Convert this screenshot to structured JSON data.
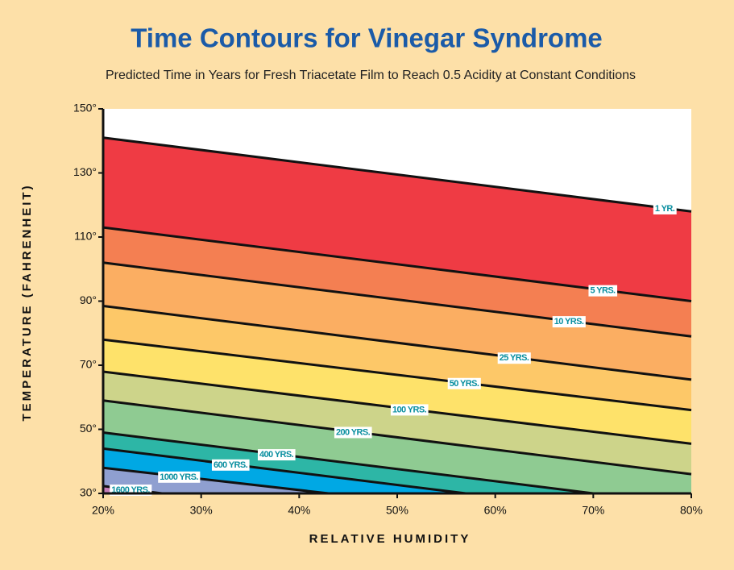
{
  "chart_data": {
    "type": "contour",
    "title": "Time Contours for Vinegar Syndrome",
    "subtitle": "Predicted Time in Years for Fresh Triacetate Film to Reach 0.5 Acidity at Constant Conditions",
    "x_label": "RELATIVE HUMIDITY",
    "y_label": "TEMPERATURE (FAHRENHEIT)",
    "xlim": [
      20,
      80
    ],
    "ylim": [
      30,
      150
    ],
    "xticks": [
      {
        "value": 20,
        "label": "20%"
      },
      {
        "value": 30,
        "label": "30%"
      },
      {
        "value": 40,
        "label": "40%"
      },
      {
        "value": 50,
        "label": "50%"
      },
      {
        "value": 60,
        "label": "60%"
      },
      {
        "value": 70,
        "label": "70%"
      },
      {
        "value": 80,
        "label": "80%"
      }
    ],
    "yticks": [
      {
        "value": 30,
        "label": "30°"
      },
      {
        "value": 50,
        "label": "50°"
      },
      {
        "value": 70,
        "label": "70°"
      },
      {
        "value": 90,
        "label": "90°"
      },
      {
        "value": 110,
        "label": "110°"
      },
      {
        "value": 130,
        "label": "130°"
      },
      {
        "value": 150,
        "label": "150°"
      }
    ],
    "series": [
      {
        "name": "1 YR.",
        "color": "#ef3b44",
        "x": [
          20,
          80
        ],
        "values": [
          141,
          118
        ]
      },
      {
        "name": "5 YRS.",
        "color": "#f47f52",
        "x": [
          20,
          80
        ],
        "values": [
          113,
          90
        ]
      },
      {
        "name": "10 YRS.",
        "color": "#fbae62",
        "x": [
          20,
          80
        ],
        "values": [
          102,
          79
        ]
      },
      {
        "name": "25 YRS.",
        "color": "#fdc868",
        "x": [
          20,
          80
        ],
        "values": [
          88.5,
          65.5
        ]
      },
      {
        "name": "50 YRS.",
        "color": "#fee26a",
        "x": [
          20,
          80
        ],
        "values": [
          78,
          56
        ]
      },
      {
        "name": "100 YRS.",
        "color": "#cdd48a",
        "x": [
          20,
          80
        ],
        "values": [
          68,
          45.5
        ]
      },
      {
        "name": "200 YRS.",
        "color": "#8fcb92",
        "x": [
          20,
          80
        ],
        "values": [
          59,
          36
        ]
      },
      {
        "name": "400 YRS.",
        "color": "#2db6a6",
        "x": [
          20,
          70
        ],
        "values": [
          49,
          30
        ]
      },
      {
        "name": "600 YRS.",
        "color": "#00a8e4",
        "x": [
          20,
          57
        ],
        "values": [
          44,
          30
        ]
      },
      {
        "name": "1000 YRS.",
        "color": "#8f9fd0",
        "x": [
          20,
          43
        ],
        "values": [
          38,
          30
        ]
      },
      {
        "name": "1600 YRS.",
        "color": "#c47cb8",
        "x": [
          20,
          26
        ],
        "values": [
          32.3,
          30
        ]
      }
    ]
  }
}
